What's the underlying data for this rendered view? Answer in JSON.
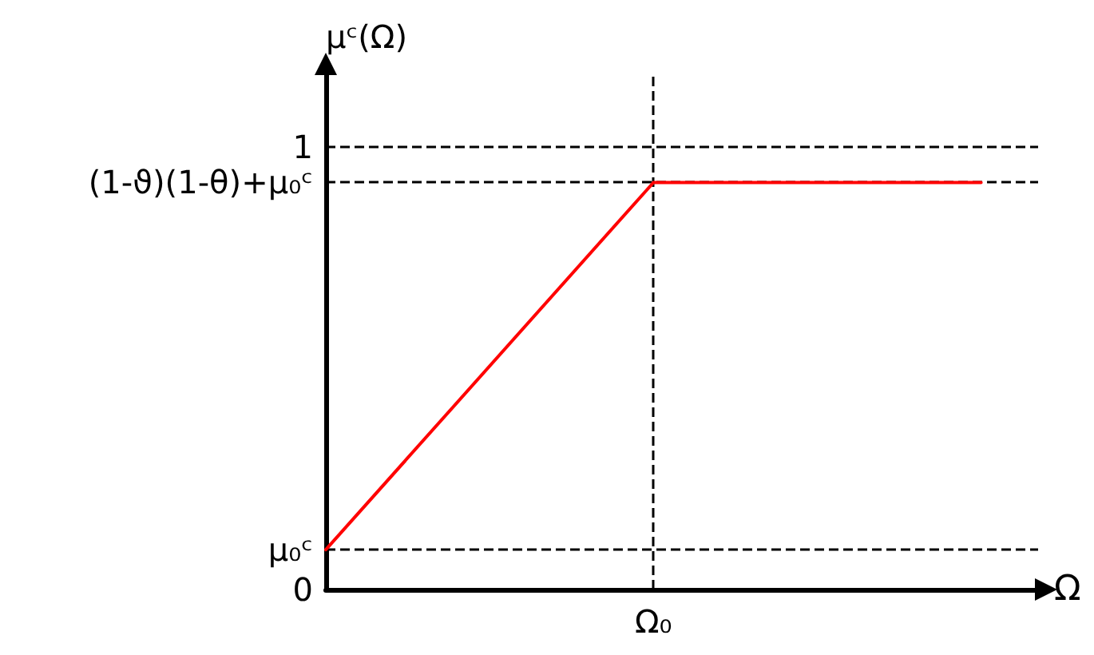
{
  "chart_data": {
    "type": "line",
    "xlabel": "Ω",
    "ylabel": "μᶜ(Ω)",
    "categories": [
      null,
      "Ω₀",
      null
    ],
    "series": [
      {
        "color": "#ff0000",
        "values": [
          0.09,
          0.92,
          0.92
        ]
      }
    ],
    "ylim": [
      0,
      1.17
    ],
    "yticks": [
      {
        "value": 0,
        "label": "0"
      },
      {
        "value": 0.09,
        "label": "μ₀ᶜ"
      },
      {
        "value": 0.92,
        "label": "(1-ϑ)(1-θ)+μ₀ᶜ"
      },
      {
        "value": 1,
        "label": "1"
      }
    ],
    "ref_lines": [
      {
        "axis": "y",
        "value": 1,
        "color": "#000000",
        "line_style": "dashed"
      },
      {
        "axis": "y",
        "value": 0.92,
        "color": "#000000",
        "line_style": "dashed"
      },
      {
        "axis": "y",
        "value": 0.09,
        "color": "#000000",
        "line_style": "dashed"
      },
      {
        "axis": "x",
        "value": "Ω₀",
        "color": "#000000",
        "line_style": "dashed"
      }
    ],
    "grid": false,
    "marker": "none",
    "line_style": "solid"
  }
}
